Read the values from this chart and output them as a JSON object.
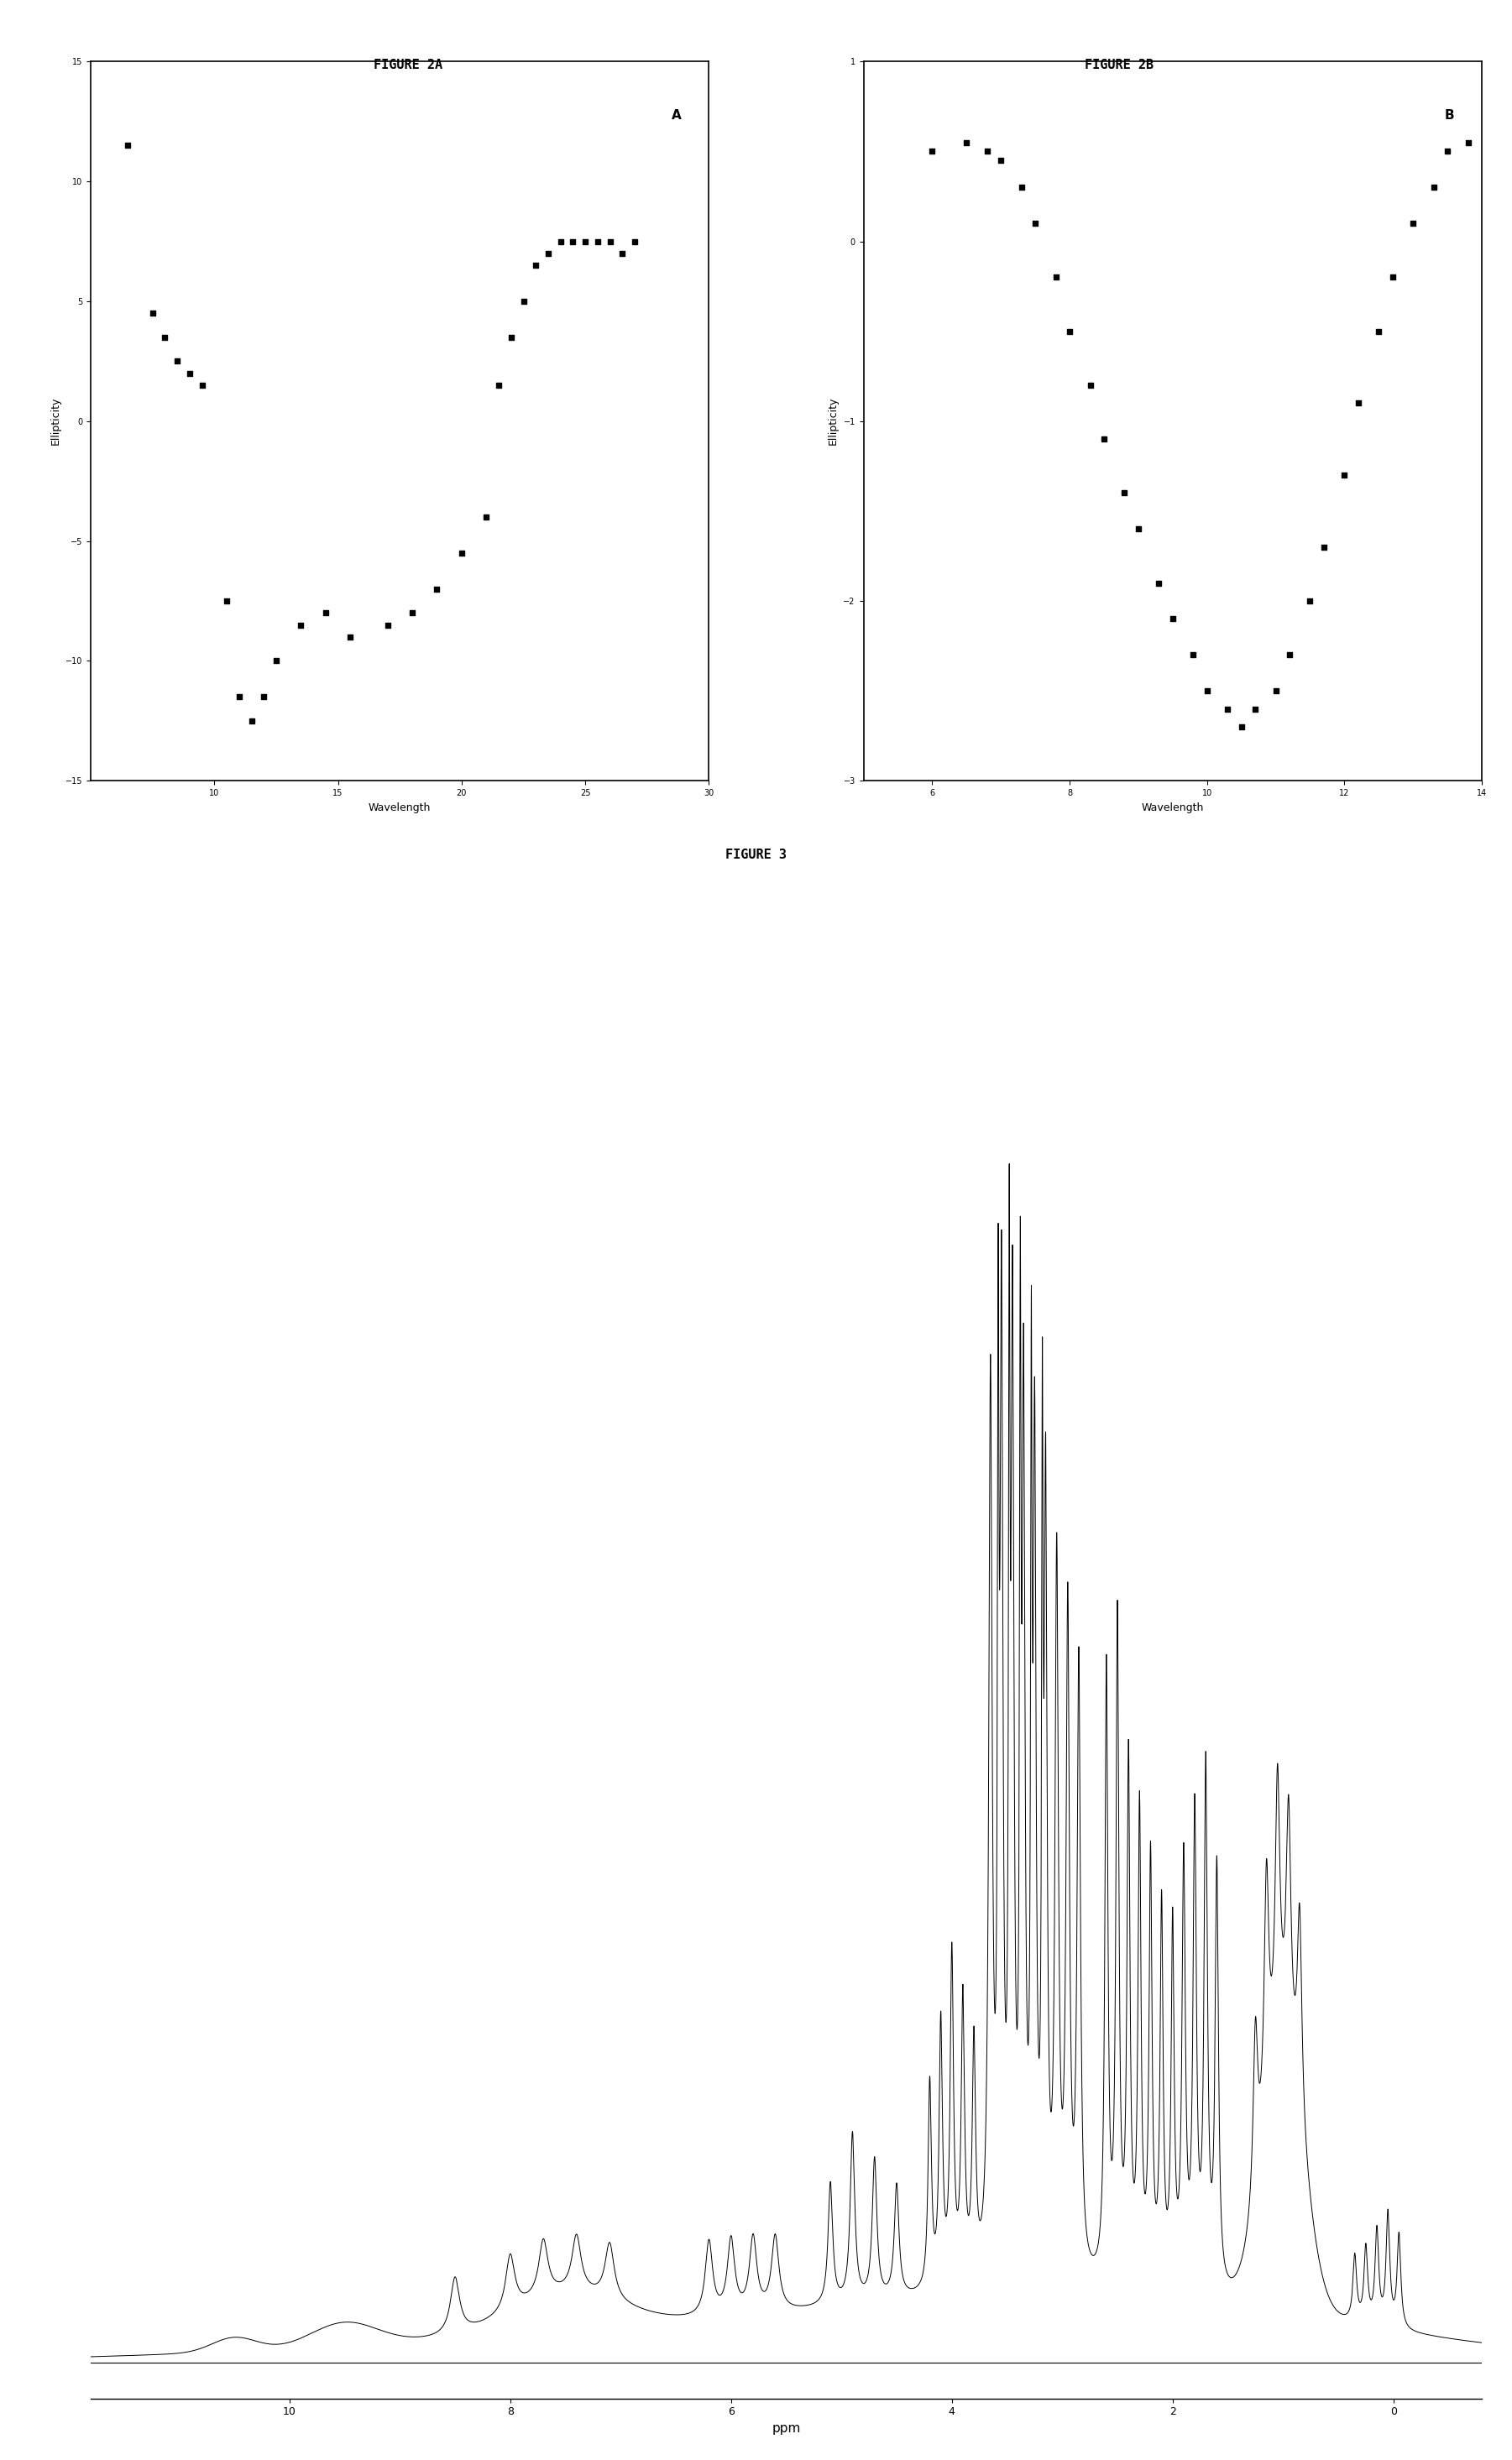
{
  "fig2a_title": "FIGURE 2A",
  "fig2b_title": "FIGURE 2B",
  "fig3_title": "FIGURE 3",
  "fig2a_label_x": "Wavelength",
  "fig2a_label_y": "Ellipticity",
  "fig2b_label_x": "Wavelength",
  "fig2b_label_y": "Ellipticity",
  "fig3_label_x": "ppm",
  "fig2a_xlim": [
    5,
    30
  ],
  "fig2a_ylim": [
    -15,
    15
  ],
  "fig2a_yticks": [
    -15,
    -10,
    -5,
    0,
    5,
    10,
    15
  ],
  "fig2a_xtick_vals": [
    10,
    15,
    20,
    25,
    30
  ],
  "fig2b_xlim": [
    5,
    14
  ],
  "fig2b_ylim": [
    -3,
    1
  ],
  "fig2b_yticks": [
    -3,
    -2,
    -1,
    0,
    1
  ],
  "fig2b_xtick_vals": [
    6,
    8,
    10,
    12,
    14
  ],
  "background_color": "#ffffff",
  "data_color": "#000000",
  "fig2a_x": [
    6.5,
    7.5,
    8.0,
    8.5,
    9.0,
    9.5,
    10.5,
    11.0,
    11.5,
    12.0,
    12.5,
    13.5,
    14.5,
    15.5,
    17.0,
    18.0,
    19.0,
    20.0,
    21.0,
    21.5,
    22.0,
    22.5,
    23.0,
    23.5,
    24.0,
    24.5,
    25.0,
    25.5,
    26.0,
    26.5,
    27.0
  ],
  "fig2a_y": [
    11.5,
    4.5,
    3.5,
    2.5,
    2.0,
    1.5,
    -7.5,
    -11.5,
    -12.5,
    -11.5,
    -10.0,
    -8.5,
    -8.0,
    -9.0,
    -8.5,
    -8.0,
    -7.0,
    -5.5,
    -4.0,
    1.5,
    3.5,
    5.0,
    6.5,
    7.0,
    7.5,
    7.5,
    7.5,
    7.5,
    7.5,
    7.0,
    7.5
  ],
  "fig2b_x": [
    6.0,
    6.5,
    6.8,
    7.0,
    7.3,
    7.5,
    7.8,
    8.0,
    8.3,
    8.5,
    8.8,
    9.0,
    9.3,
    9.5,
    9.8,
    10.0,
    10.3,
    10.5,
    10.7,
    11.0,
    11.2,
    11.5,
    11.7,
    12.0,
    12.2,
    12.5,
    12.7,
    13.0,
    13.3,
    13.5,
    13.8
  ],
  "fig2b_y": [
    0.5,
    0.55,
    0.5,
    0.45,
    0.3,
    0.1,
    -0.2,
    -0.5,
    -0.8,
    -1.1,
    -1.4,
    -1.6,
    -1.9,
    -2.1,
    -2.3,
    -2.5,
    -2.6,
    -2.7,
    -2.6,
    -2.5,
    -2.3,
    -2.0,
    -1.7,
    -1.3,
    -0.9,
    -0.5,
    -0.2,
    0.1,
    0.3,
    0.5,
    0.55
  ]
}
